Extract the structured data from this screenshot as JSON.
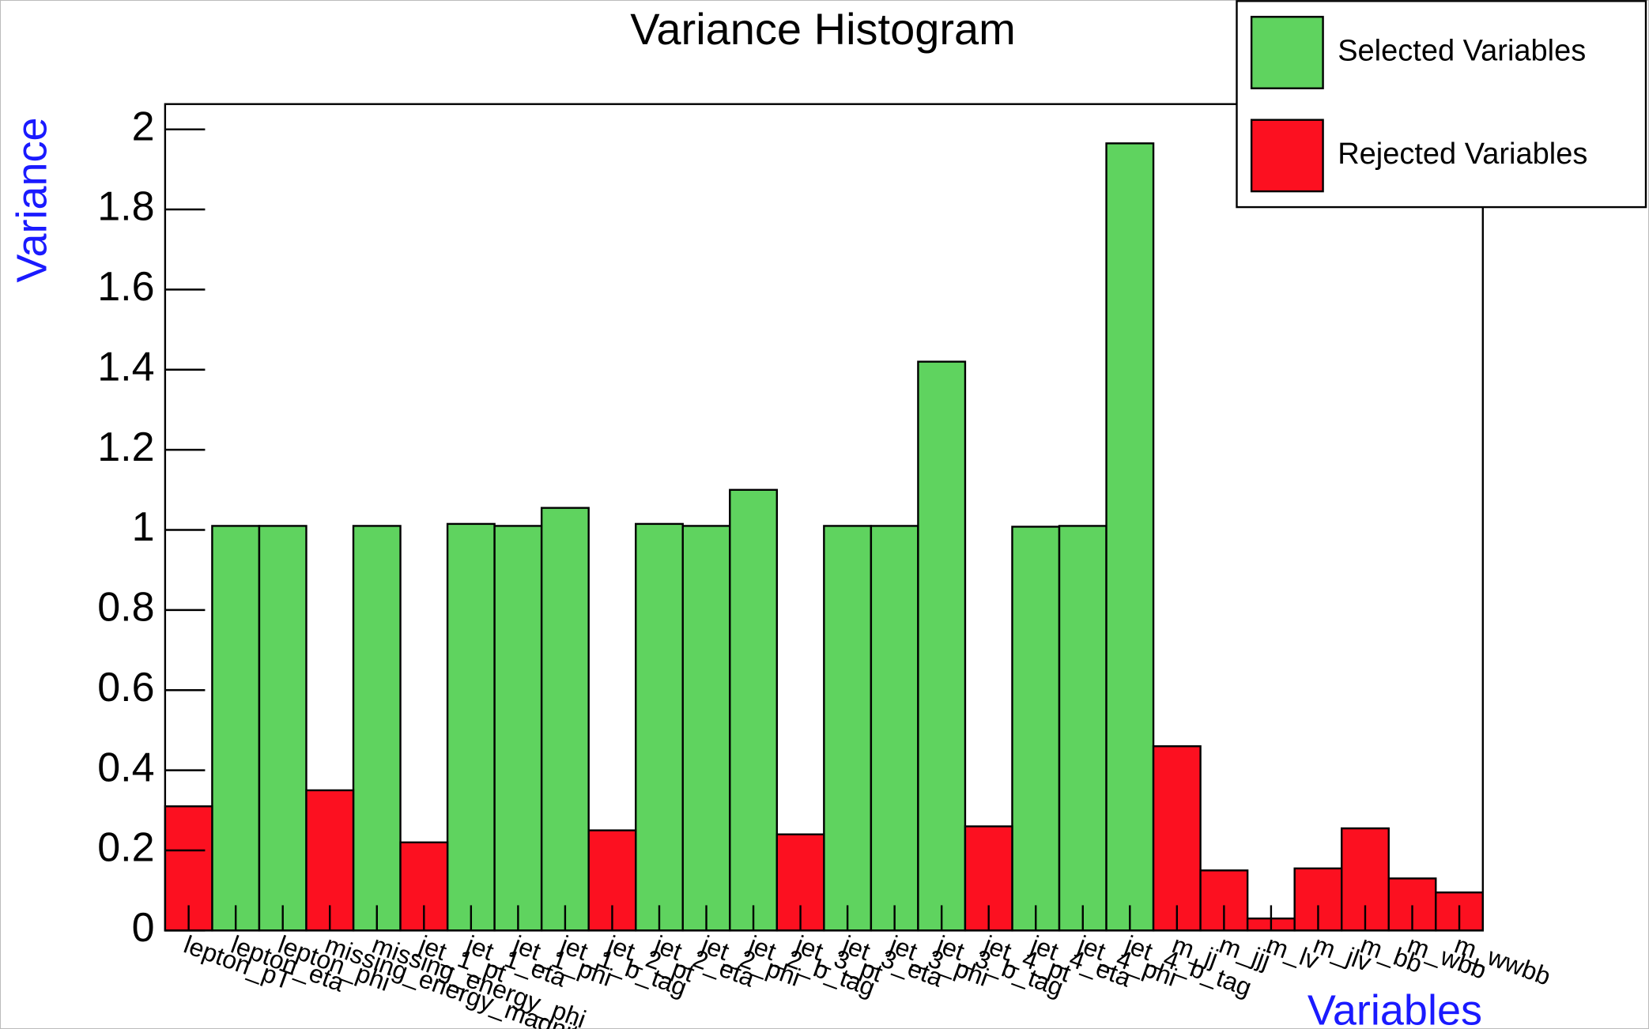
{
  "chart_data": {
    "type": "bar",
    "title": "Variance Histogram",
    "x_label": "Variables",
    "y_label": "Variance",
    "categories": [
      "lepton_pT",
      "lepton_eta",
      "lepton_phi",
      "missing_energy_magnitude",
      "missing_energy_phi",
      "jet_1_pt",
      "jet_1_eta",
      "jet_1_phi",
      "jet_1_b_tag",
      "jet_2_pt",
      "jet_2_eta",
      "jet_2_phi",
      "jet_2_b_tag",
      "jet_3_pt",
      "jet_3_eta",
      "jet_3_phi",
      "jet_3_b_tag",
      "jet_4_pt",
      "jet_4_eta",
      "jet_4_phi",
      "jet_4_b_tag",
      "m_jj",
      "m_jjj",
      "m_lv",
      "m_jlv",
      "m_bb",
      "m_wbb",
      "m_wwbb"
    ],
    "series": [
      {
        "name": "Selected Variables",
        "color": "#5fd35f",
        "values": [
          null,
          1.01,
          1.01,
          null,
          1.01,
          null,
          1.015,
          1.01,
          1.055,
          null,
          1.015,
          1.01,
          1.1,
          null,
          1.01,
          1.01,
          1.42,
          null,
          1.008,
          1.01,
          1.965,
          null,
          null,
          null,
          null,
          null,
          null,
          null
        ]
      },
      {
        "name": "Rejected Variables",
        "color": "#fc1020",
        "values": [
          0.31,
          null,
          null,
          0.35,
          null,
          0.22,
          null,
          null,
          null,
          0.25,
          null,
          null,
          null,
          0.24,
          null,
          null,
          null,
          0.26,
          null,
          null,
          null,
          0.46,
          0.15,
          0.03,
          0.155,
          0.255,
          0.13,
          0.095
        ]
      }
    ],
    "ylim": [
      0,
      2.063
    ],
    "yticks": [
      0,
      0.2,
      0.4,
      0.6,
      0.8,
      1,
      1.2,
      1.4,
      1.6,
      1.8,
      2
    ],
    "legend": "top-right"
  }
}
